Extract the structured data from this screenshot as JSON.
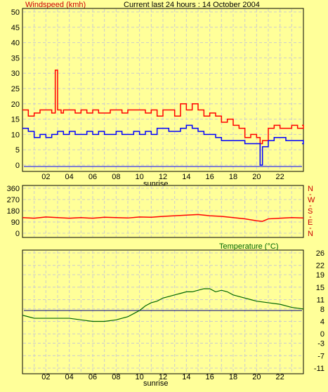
{
  "chart_data": [
    {
      "type": "line",
      "title": "Current last 24 hours : 14 October 2004",
      "ylabel": "Windspeed (kmh)",
      "xlabel": "sunrise",
      "ylim": [
        0,
        50
      ],
      "yticks": [
        "0",
        "5",
        "10",
        "15",
        "20",
        "25",
        "30",
        "35",
        "40",
        "45",
        "50"
      ],
      "xlim": [
        0,
        24
      ],
      "xticks": [
        "02",
        "04",
        "06",
        "08",
        "10",
        "12",
        "14",
        "16",
        "18",
        "20",
        "22"
      ],
      "grid": true,
      "series": [
        {
          "color": "#FF0000",
          "x": [
            0,
            0.5,
            1,
            1.5,
            2,
            2.5,
            2.8,
            3,
            3.3,
            3.5,
            4,
            4.5,
            5,
            5.5,
            6,
            6.5,
            7,
            7.5,
            8,
            8.5,
            9,
            9.5,
            10,
            10.5,
            11,
            11.5,
            12,
            12.5,
            13,
            13.5,
            14,
            14.5,
            15,
            15.5,
            16,
            16.5,
            17,
            17.5,
            18,
            18.5,
            19,
            19.5,
            20,
            20.3,
            20.5,
            21,
            21.5,
            22,
            22.5,
            23,
            23.5,
            24
          ],
          "values": [
            18,
            16,
            17,
            18,
            18,
            17,
            31,
            18,
            17,
            18,
            18,
            17,
            18,
            17,
            18,
            17,
            17,
            18,
            18,
            17,
            18,
            18,
            18,
            17,
            18,
            16,
            18,
            18,
            16,
            20,
            18,
            20,
            18,
            16,
            17,
            16,
            14,
            15,
            13,
            12,
            9,
            10,
            9,
            7,
            8,
            12,
            13,
            12,
            12,
            13,
            12,
            13
          ]
        },
        {
          "color": "#0000FF",
          "x": [
            0,
            0.5,
            1,
            1.5,
            2,
            2.5,
            3,
            3.5,
            4,
            4.5,
            5,
            5.5,
            6,
            6.5,
            7,
            7.5,
            8,
            8.5,
            9,
            9.5,
            10,
            10.5,
            11,
            11.5,
            12,
            12.5,
            13,
            13.5,
            14,
            14.5,
            15,
            15.5,
            16,
            16.5,
            17,
            17.5,
            18,
            18.5,
            19,
            19.5,
            20,
            20.3,
            20.5,
            21,
            21.5,
            22,
            22.5,
            23,
            23.5,
            24
          ],
          "values": [
            12,
            11,
            9,
            10,
            9,
            10,
            11,
            10,
            11,
            10,
            10,
            11,
            10,
            11,
            10,
            10,
            11,
            10,
            10,
            11,
            10,
            11,
            10,
            12,
            12,
            11,
            11,
            12,
            13,
            12,
            11,
            10,
            10,
            9,
            8,
            8,
            8,
            8,
            7,
            7,
            7,
            0,
            6,
            8,
            9,
            9,
            8,
            8,
            8,
            7
          ]
        }
      ],
      "baseline": {
        "value": 0,
        "color": "#0000FF"
      }
    },
    {
      "type": "line",
      "ylim": [
        0,
        360
      ],
      "yticks": [
        "0",
        "90",
        "180",
        "270",
        "360"
      ],
      "ytick_labels_right": [
        "N",
        "E",
        "S",
        "W",
        "N"
      ],
      "xlim": [
        0,
        24
      ],
      "grid": true,
      "series": [
        {
          "color": "#FF0000",
          "x": [
            0,
            1,
            2,
            3,
            4,
            5,
            6,
            7,
            8,
            9,
            10,
            11,
            12,
            13,
            14,
            15,
            16,
            17,
            18,
            19,
            20,
            20.5,
            21,
            22,
            23,
            24
          ],
          "values": [
            125,
            120,
            130,
            125,
            120,
            125,
            120,
            128,
            125,
            122,
            130,
            128,
            135,
            140,
            145,
            150,
            140,
            135,
            125,
            115,
            100,
            95,
            115,
            120,
            125,
            122
          ]
        }
      ]
    },
    {
      "type": "line",
      "title": "Temperature (°C)",
      "xlabel": "sunrise",
      "ylim": [
        -11,
        26
      ],
      "yticks": [
        "-11",
        "-7",
        "-3",
        "0",
        "4",
        "8",
        "11",
        "15",
        "19",
        "22",
        "26"
      ],
      "xlim": [
        0,
        24
      ],
      "xticks": [
        "02",
        "04",
        "06",
        "08",
        "10",
        "12",
        "14",
        "16",
        "18",
        "20",
        "22"
      ],
      "grid": true,
      "series": [
        {
          "color": "#006600",
          "x": [
            0,
            0.5,
            1,
            2,
            3,
            4,
            5,
            6,
            7,
            8,
            8.5,
            9,
            9.5,
            10,
            10.5,
            11,
            11.5,
            12,
            12.5,
            13,
            13.5,
            14,
            14.5,
            15,
            15.5,
            16,
            16.5,
            17,
            17.5,
            18,
            18.5,
            19,
            19.5,
            20,
            21,
            22,
            23,
            24
          ],
          "values": [
            6,
            5.5,
            5,
            5,
            5,
            5,
            4.5,
            4,
            4,
            4.5,
            5,
            5.5,
            6.5,
            7.5,
            9,
            10,
            10.5,
            11.5,
            12,
            12.5,
            13,
            13.5,
            13.5,
            14,
            14.5,
            14.5,
            13.5,
            14,
            13.5,
            12.5,
            12,
            11.5,
            11,
            10.5,
            10,
            9.5,
            8.5,
            8
          ]
        }
      ],
      "reference_line": {
        "value": 7.5,
        "color": "#000080"
      }
    }
  ]
}
